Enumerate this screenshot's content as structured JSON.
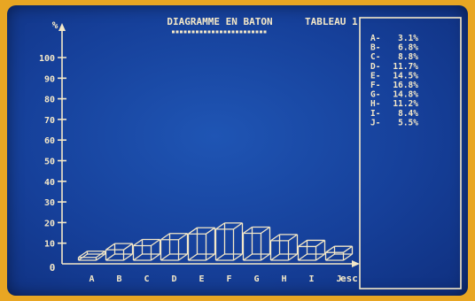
{
  "header": {
    "title": "DIAGRAMME EN BATON",
    "table_label": "TABLEAU 1"
  },
  "axis": {
    "y_unit": "%",
    "origin_label": "0",
    "x_end_label": "esc"
  },
  "colors": {
    "screen": "#16409a",
    "ink": "#f4e8c8",
    "frame": "#e8a623"
  },
  "legend": [
    {
      "key": "A",
      "value": "3.1%"
    },
    {
      "key": "B",
      "value": "6.8%"
    },
    {
      "key": "C",
      "value": "8.8%"
    },
    {
      "key": "D",
      "value": "11.7%"
    },
    {
      "key": "E",
      "value": "14.5%"
    },
    {
      "key": "F",
      "value": "16.8%"
    },
    {
      "key": "G",
      "value": "14.8%"
    },
    {
      "key": "H",
      "value": "11.2%"
    },
    {
      "key": "I",
      "value": "8.4%"
    },
    {
      "key": "J",
      "value": "5.5%"
    }
  ],
  "chart_data": {
    "type": "bar",
    "title": "DIAGRAMME EN BATON",
    "xlabel": "",
    "ylabel": "%",
    "categories": [
      "A",
      "B",
      "C",
      "D",
      "E",
      "F",
      "G",
      "H",
      "I",
      "J"
    ],
    "values": [
      3.1,
      6.8,
      8.8,
      11.7,
      14.5,
      16.8,
      14.8,
      11.2,
      8.4,
      5.5
    ],
    "ylim": [
      0,
      100
    ],
    "yticks": [
      10,
      20,
      30,
      40,
      50,
      60,
      70,
      80,
      90,
      100
    ],
    "grid": false,
    "style": "3d-wireframe"
  }
}
